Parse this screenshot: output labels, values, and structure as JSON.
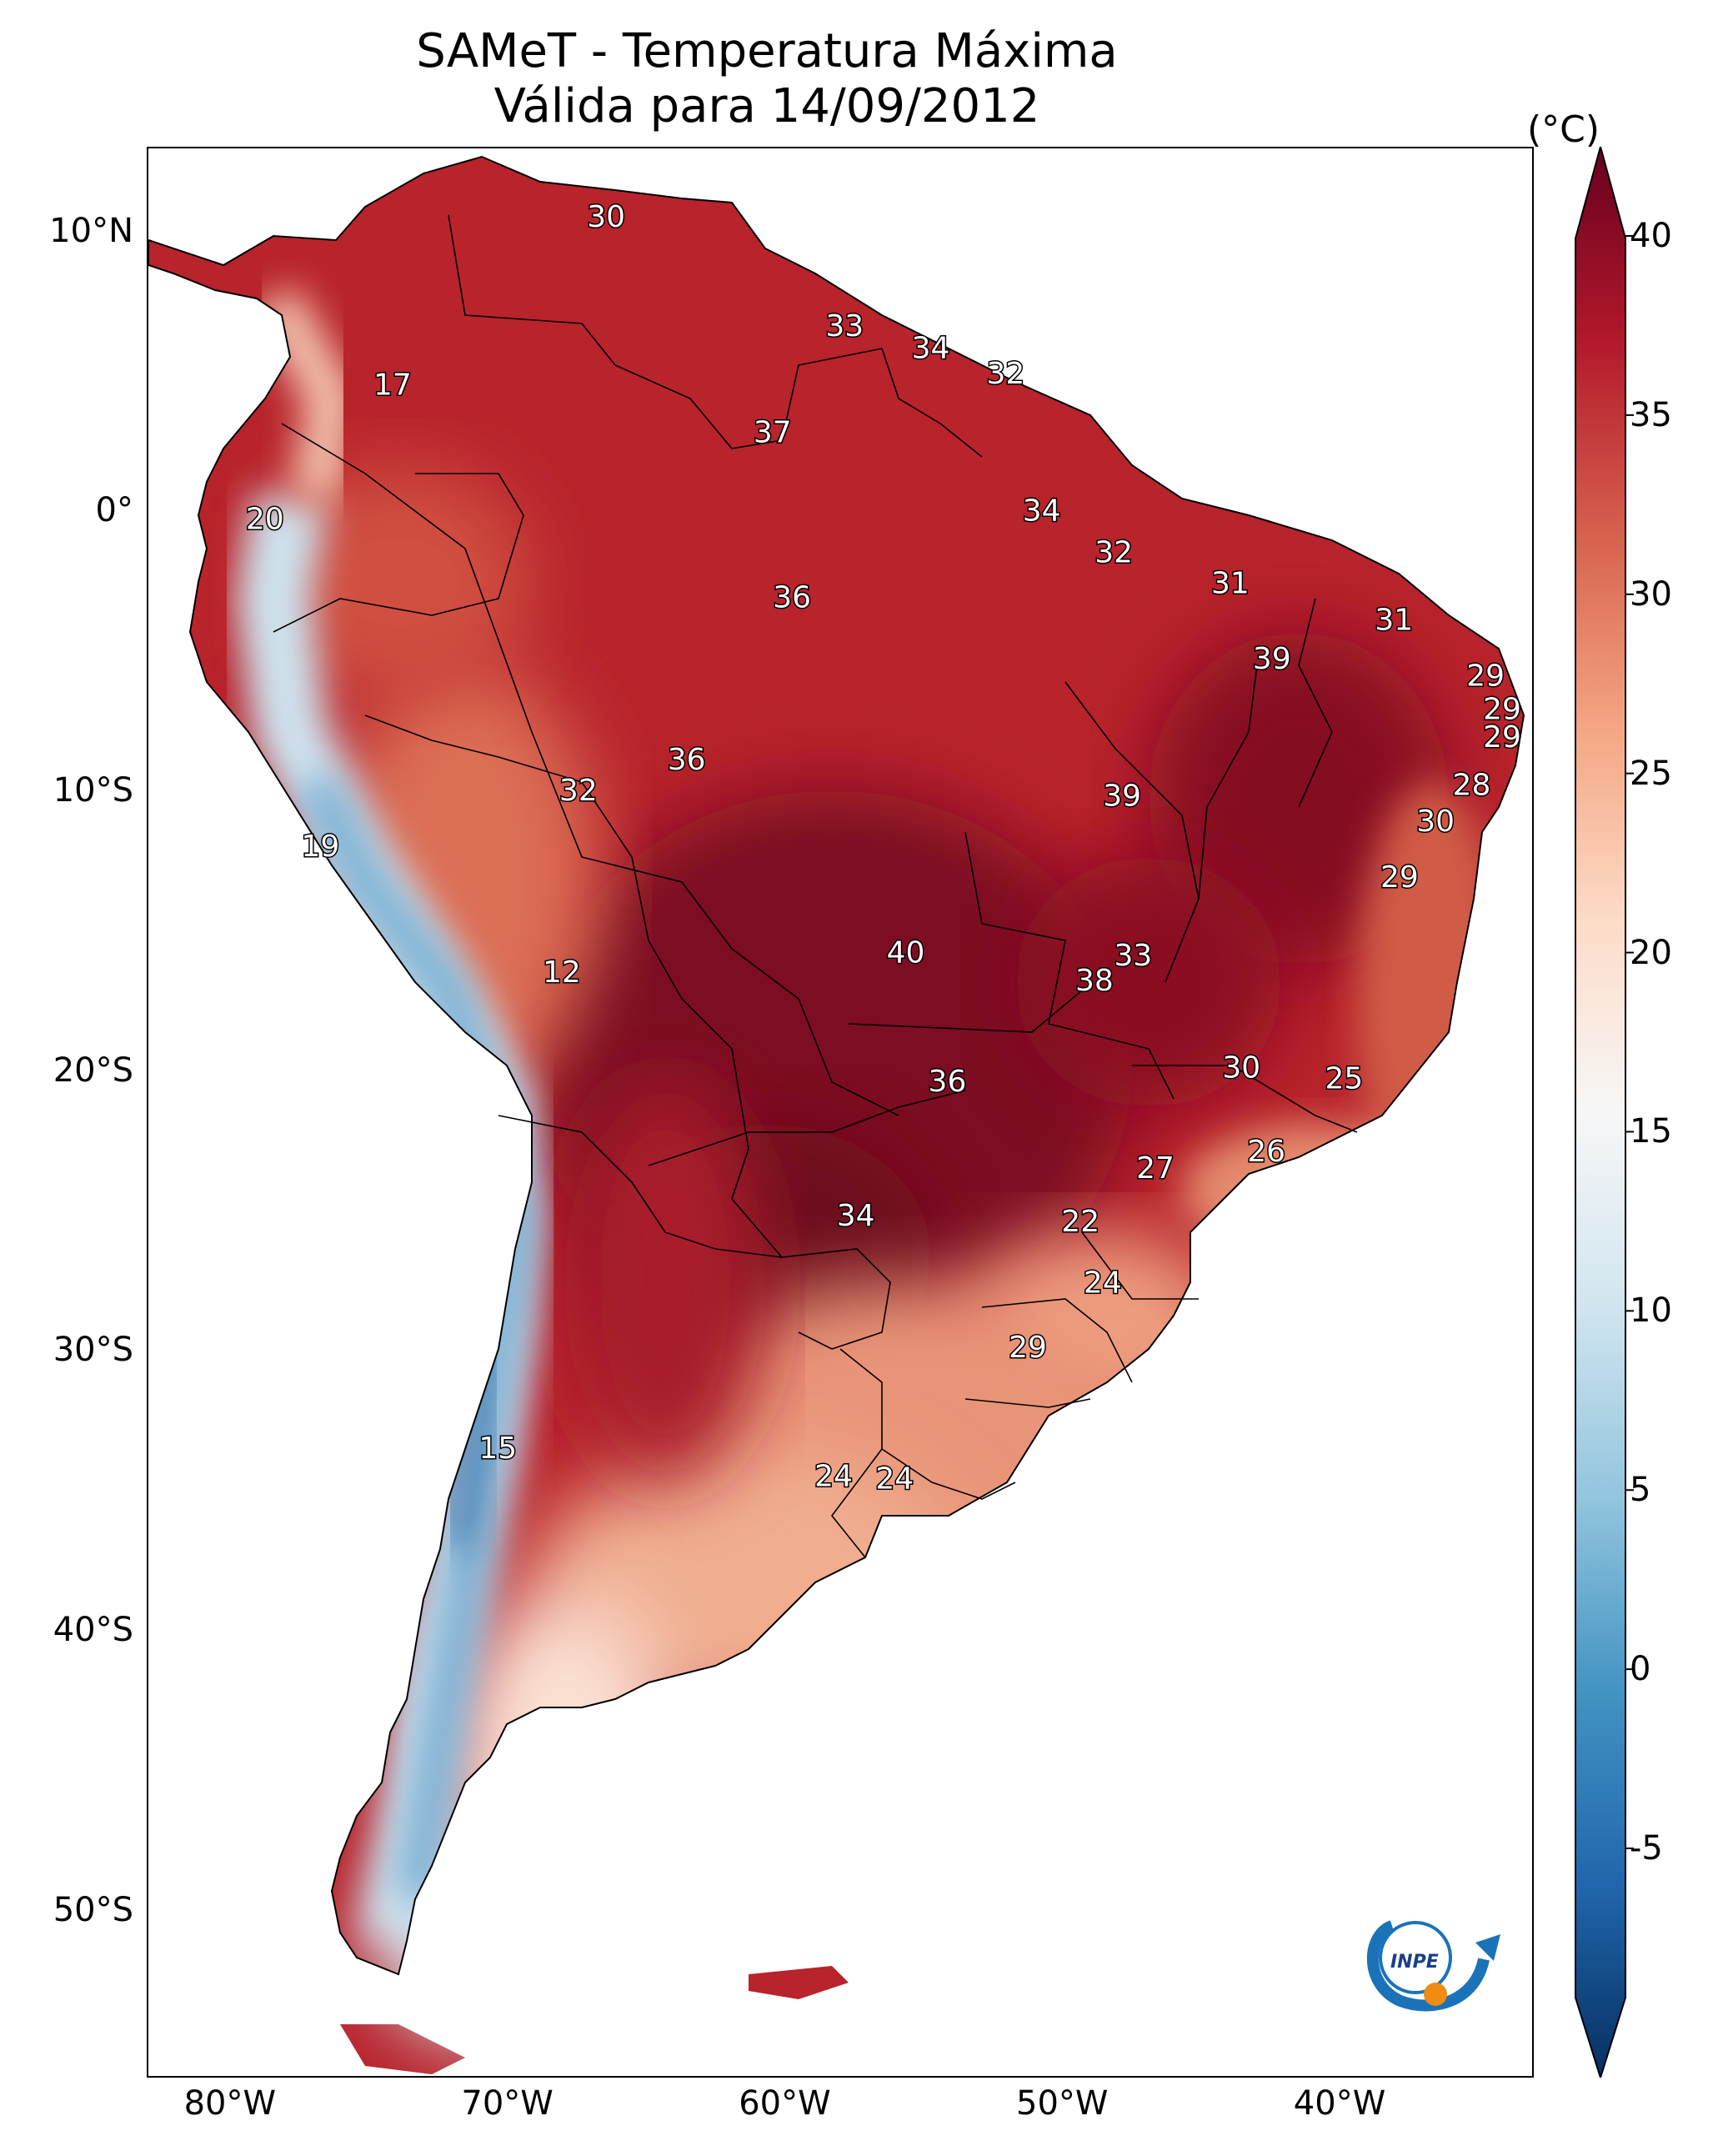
{
  "title": {
    "line1": "SAMeT - Temperatura Máxima",
    "line2": "Válida para 14/09/2012"
  },
  "axes": {
    "lat_labels": [
      {
        "deg": 10,
        "text": "10°N"
      },
      {
        "deg": 0,
        "text": "0°"
      },
      {
        "deg": -10,
        "text": "10°S"
      },
      {
        "deg": -20,
        "text": "20°S"
      },
      {
        "deg": -30,
        "text": "30°S"
      },
      {
        "deg": -40,
        "text": "40°S"
      },
      {
        "deg": -50,
        "text": "50°S"
      }
    ],
    "lon_labels": [
      {
        "deg": -80,
        "text": "80°W"
      },
      {
        "deg": -70,
        "text": "70°W"
      },
      {
        "deg": -60,
        "text": "60°W"
      },
      {
        "deg": -50,
        "text": "50°W"
      },
      {
        "deg": -40,
        "text": "40°W"
      }
    ],
    "lon_range": [
      -83,
      -33
    ],
    "lat_range": [
      -56,
      13
    ]
  },
  "colorbar": {
    "unit": "(°C)",
    "min": -5,
    "max": 40,
    "ticks": [
      -5,
      0,
      5,
      10,
      15,
      20,
      25,
      30,
      35,
      40
    ],
    "colors": [
      "#053061",
      "#2166ac",
      "#4393c3",
      "#92c5de",
      "#d1e5f0",
      "#f7f7f7",
      "#fddbc7",
      "#f4a582",
      "#d6604d",
      "#b2182b",
      "#67001f"
    ]
  },
  "map_labels": [
    {
      "text": "30",
      "lon": -66.5,
      "lat": 10.5
    },
    {
      "text": "17",
      "lon": -74.2,
      "lat": 4.5
    },
    {
      "text": "33",
      "lon": -57.9,
      "lat": 6.6
    },
    {
      "text": "34",
      "lon": -54.8,
      "lat": 5.8
    },
    {
      "text": "32",
      "lon": -52.1,
      "lat": 4.9
    },
    {
      "text": "37",
      "lon": -60.5,
      "lat": 2.8
    },
    {
      "text": "20",
      "lon": -78.8,
      "lat": -0.3
    },
    {
      "text": "34",
      "lon": -50.8,
      "lat": 0.0
    },
    {
      "text": "32",
      "lon": -48.2,
      "lat": -1.5
    },
    {
      "text": "31",
      "lon": -44.0,
      "lat": -2.6
    },
    {
      "text": "36",
      "lon": -59.8,
      "lat": -3.1
    },
    {
      "text": "31",
      "lon": -38.1,
      "lat": -3.9
    },
    {
      "text": "39",
      "lon": -42.5,
      "lat": -5.3
    },
    {
      "text": "29",
      "lon": -34.8,
      "lat": -5.9
    },
    {
      "text": "29",
      "lon": -34.2,
      "lat": -7.1
    },
    {
      "text": "29",
      "lon": -34.2,
      "lat": -8.1
    },
    {
      "text": "36",
      "lon": -63.6,
      "lat": -8.9
    },
    {
      "text": "28",
      "lon": -35.3,
      "lat": -9.8
    },
    {
      "text": "32",
      "lon": -67.5,
      "lat": -10.0
    },
    {
      "text": "39",
      "lon": -47.9,
      "lat": -10.2
    },
    {
      "text": "30",
      "lon": -36.6,
      "lat": -11.1
    },
    {
      "text": "19",
      "lon": -76.8,
      "lat": -12.0
    },
    {
      "text": "29",
      "lon": -37.9,
      "lat": -13.1
    },
    {
      "text": "40",
      "lon": -55.7,
      "lat": -15.8
    },
    {
      "text": "33",
      "lon": -47.5,
      "lat": -15.9
    },
    {
      "text": "38",
      "lon": -48.9,
      "lat": -16.8
    },
    {
      "text": "12",
      "lon": -68.1,
      "lat": -16.5
    },
    {
      "text": "30",
      "lon": -43.6,
      "lat": -19.9
    },
    {
      "text": "36",
      "lon": -54.2,
      "lat": -20.4
    },
    {
      "text": "25",
      "lon": -39.9,
      "lat": -20.3
    },
    {
      "text": "26",
      "lon": -42.7,
      "lat": -22.9
    },
    {
      "text": "27",
      "lon": -46.7,
      "lat": -23.5
    },
    {
      "text": "22",
      "lon": -49.4,
      "lat": -25.4
    },
    {
      "text": "34",
      "lon": -57.5,
      "lat": -25.2
    },
    {
      "text": "24",
      "lon": -48.6,
      "lat": -27.6
    },
    {
      "text": "29",
      "lon": -51.3,
      "lat": -29.9
    },
    {
      "text": "15",
      "lon": -70.4,
      "lat": -33.5
    },
    {
      "text": "24",
      "lon": -58.3,
      "lat": -34.5
    },
    {
      "text": "24",
      "lon": -56.1,
      "lat": -34.6
    }
  ],
  "logo": {
    "text": "INPE"
  }
}
